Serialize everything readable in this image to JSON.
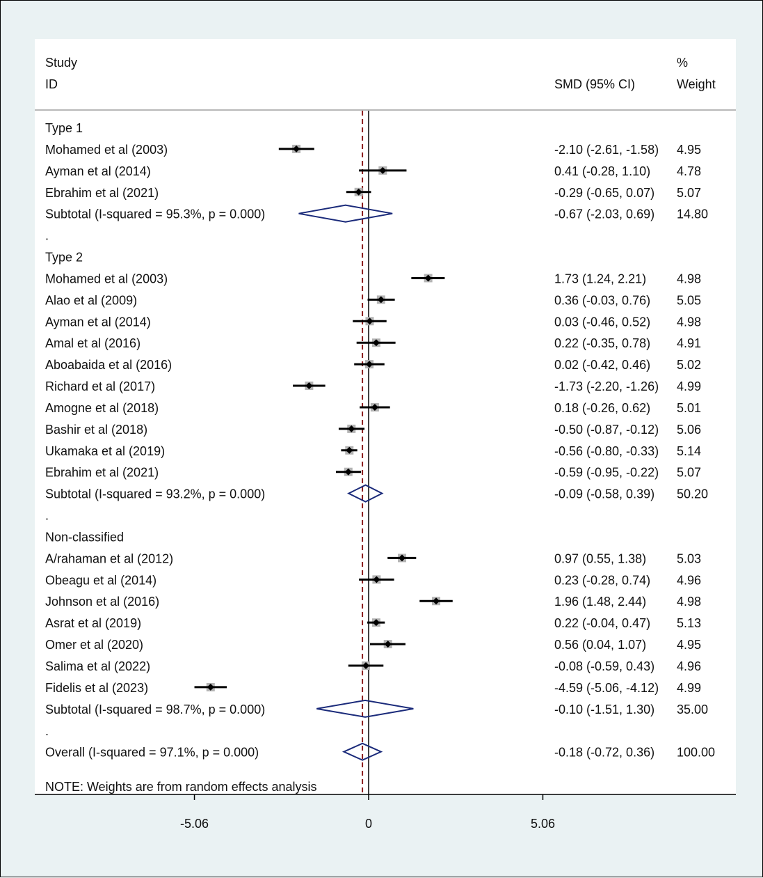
{
  "chart_data": {
    "type": "forest",
    "header": {
      "col1_line1": "Study",
      "col1_line2": "ID",
      "col2": "SMD (95% CI)",
      "col3_line1": "%",
      "col3_line2": "Weight"
    },
    "xlim": [
      -9.5,
      10.5
    ],
    "ticks": [
      {
        "value": -5.06,
        "label": "-5.06"
      },
      {
        "value": 0,
        "label": "0"
      },
      {
        "value": 5.06,
        "label": "5.06"
      }
    ],
    "overall_effect_line": -0.18,
    "null_line": 0,
    "note": "NOTE: Weights are from random effects analysis",
    "rows": [
      {
        "kind": "group",
        "label": "Type 1"
      },
      {
        "kind": "study",
        "label": "Mohamed et al (2003)",
        "est": -2.1,
        "lo": -2.61,
        "hi": -1.58,
        "ci": "-2.10 (-2.61, -1.58)",
        "weight": "4.95"
      },
      {
        "kind": "study",
        "label": "Ayman et al (2014)",
        "est": 0.41,
        "lo": -0.28,
        "hi": 1.1,
        "ci": "0.41 (-0.28, 1.10)",
        "weight": "4.78"
      },
      {
        "kind": "study",
        "label": "Ebrahim et al (2021)",
        "est": -0.29,
        "lo": -0.65,
        "hi": 0.07,
        "ci": "-0.29 (-0.65, 0.07)",
        "weight": "5.07"
      },
      {
        "kind": "subtotal",
        "label": "Subtotal  (I-squared = 95.3%, p = 0.000)",
        "est": -0.67,
        "lo": -2.03,
        "hi": 0.69,
        "ci": "-0.67 (-2.03, 0.69)",
        "weight": "14.80"
      },
      {
        "kind": "spacer",
        "label": "."
      },
      {
        "kind": "group",
        "label": "Type 2"
      },
      {
        "kind": "study",
        "label": "Mohamed et al (2003)",
        "est": 1.73,
        "lo": 1.24,
        "hi": 2.21,
        "ci": "1.73 (1.24, 2.21)",
        "weight": "4.98"
      },
      {
        "kind": "study",
        "label": "Alao et al (2009)",
        "est": 0.36,
        "lo": -0.03,
        "hi": 0.76,
        "ci": "0.36 (-0.03, 0.76)",
        "weight": "5.05"
      },
      {
        "kind": "study",
        "label": "Ayman et al (2014)",
        "est": 0.03,
        "lo": -0.46,
        "hi": 0.52,
        "ci": "0.03 (-0.46, 0.52)",
        "weight": "4.98"
      },
      {
        "kind": "study",
        "label": "Amal et al (2016)",
        "est": 0.22,
        "lo": -0.35,
        "hi": 0.78,
        "ci": "0.22 (-0.35, 0.78)",
        "weight": "4.91"
      },
      {
        "kind": "study",
        "label": "Aboabaida et al (2016)",
        "est": 0.02,
        "lo": -0.42,
        "hi": 0.46,
        "ci": "0.02 (-0.42, 0.46)",
        "weight": "5.02"
      },
      {
        "kind": "study",
        "label": "Richard et al (2017)",
        "est": -1.73,
        "lo": -2.2,
        "hi": -1.26,
        "ci": "-1.73 (-2.20, -1.26)",
        "weight": "4.99"
      },
      {
        "kind": "study",
        "label": "Amogne et al (2018)",
        "est": 0.18,
        "lo": -0.26,
        "hi": 0.62,
        "ci": "0.18 (-0.26, 0.62)",
        "weight": "5.01"
      },
      {
        "kind": "study",
        "label": "Bashir et al (2018)",
        "est": -0.5,
        "lo": -0.87,
        "hi": -0.12,
        "ci": "-0.50 (-0.87, -0.12)",
        "weight": "5.06"
      },
      {
        "kind": "study",
        "label": "Ukamaka et al (2019)",
        "est": -0.56,
        "lo": -0.8,
        "hi": -0.33,
        "ci": "-0.56 (-0.80, -0.33)",
        "weight": "5.14"
      },
      {
        "kind": "study",
        "label": "Ebrahim et al (2021)",
        "est": -0.59,
        "lo": -0.95,
        "hi": -0.22,
        "ci": "-0.59 (-0.95, -0.22)",
        "weight": "5.07"
      },
      {
        "kind": "subtotal",
        "label": "Subtotal  (I-squared = 93.2%, p = 0.000)",
        "est": -0.09,
        "lo": -0.58,
        "hi": 0.39,
        "ci": "-0.09 (-0.58, 0.39)",
        "weight": "50.20"
      },
      {
        "kind": "spacer",
        "label": "."
      },
      {
        "kind": "group",
        "label": "Non-classified"
      },
      {
        "kind": "study",
        "label": "A/rahaman et al (2012)",
        "est": 0.97,
        "lo": 0.55,
        "hi": 1.38,
        "ci": "0.97 (0.55, 1.38)",
        "weight": "5.03"
      },
      {
        "kind": "study",
        "label": "Obeagu et al (2014)",
        "est": 0.23,
        "lo": -0.28,
        "hi": 0.74,
        "ci": "0.23 (-0.28, 0.74)",
        "weight": "4.96"
      },
      {
        "kind": "study",
        "label": "Johnson et al (2016)",
        "est": 1.96,
        "lo": 1.48,
        "hi": 2.44,
        "ci": "1.96 (1.48, 2.44)",
        "weight": "4.98"
      },
      {
        "kind": "study",
        "label": "Asrat et al (2019)",
        "est": 0.22,
        "lo": -0.04,
        "hi": 0.47,
        "ci": "0.22 (-0.04, 0.47)",
        "weight": "5.13"
      },
      {
        "kind": "study",
        "label": "Omer et al (2020)",
        "est": 0.56,
        "lo": 0.04,
        "hi": 1.07,
        "ci": "0.56 (0.04, 1.07)",
        "weight": "4.95"
      },
      {
        "kind": "study",
        "label": "Salima et al (2022)",
        "est": -0.08,
        "lo": -0.59,
        "hi": 0.43,
        "ci": "-0.08 (-0.59, 0.43)",
        "weight": "4.96"
      },
      {
        "kind": "study",
        "label": "Fidelis et al (2023)",
        "est": -4.59,
        "lo": -5.06,
        "hi": -4.12,
        "ci": "-4.59 (-5.06, -4.12)",
        "weight": "4.99"
      },
      {
        "kind": "subtotal",
        "label": "Subtotal  (I-squared = 98.7%, p = 0.000)",
        "est": -0.1,
        "lo": -1.51,
        "hi": 1.3,
        "ci": "-0.10 (-1.51, 1.30)",
        "weight": "35.00"
      },
      {
        "kind": "spacer",
        "label": "."
      },
      {
        "kind": "overall",
        "label": "Overall  (I-squared = 97.1%, p = 0.000)",
        "est": -0.18,
        "lo": -0.72,
        "hi": 0.36,
        "ci": "-0.18 (-0.72, 0.36)",
        "weight": "100.00"
      }
    ],
    "colors": {
      "background": "#eaf2f3",
      "panel": "#ffffff",
      "text": "#111111",
      "ci_line": "#000000",
      "box": "#b4b4b4",
      "dot": "#000000",
      "diamond": "#1a2a7a",
      "overall_line": "#8b1a1a",
      "rule": "#b8b8b8"
    }
  }
}
